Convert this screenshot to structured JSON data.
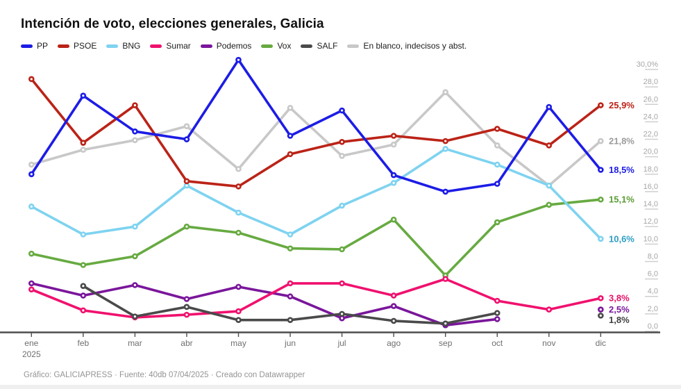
{
  "header": {
    "title": "Intención de voto, elecciones generales, Galicia"
  },
  "legend": {
    "items": [
      {
        "label": "PP",
        "color": "#1c1ce6"
      },
      {
        "label": "PSOE",
        "color": "#bb2317"
      },
      {
        "label": "BNG",
        "color": "#7ed3f0"
      },
      {
        "label": "Sumar",
        "color": "#f0116e"
      },
      {
        "label": "Podemos",
        "color": "#7a169b"
      },
      {
        "label": "Vox",
        "color": "#67aa41"
      },
      {
        "label": "SALF",
        "color": "#4a4a4a"
      },
      {
        "label": "En blanco, indecisos y abst.",
        "color": "#c8c8c8"
      }
    ]
  },
  "chart_data": {
    "type": "line",
    "title": "Intención de voto, elecciones generales, Galicia",
    "xlabel": "",
    "ylabel": "",
    "ylim": [
      0,
      31.5
    ],
    "grid": "off",
    "legend_position": "top",
    "x_categories": [
      "ene",
      "feb",
      "mar",
      "abr",
      "may",
      "jun",
      "jul",
      "ago",
      "sep",
      "oct",
      "nov",
      "dic"
    ],
    "x_axis_year": "2025",
    "y_ticks": [
      {
        "v": 0,
        "label": "0,0"
      },
      {
        "v": 2,
        "label": "2,0"
      },
      {
        "v": 4,
        "label": "4,0"
      },
      {
        "v": 6,
        "label": "6,0"
      },
      {
        "v": 8,
        "label": "8,0"
      },
      {
        "v": 10,
        "label": "10,0"
      },
      {
        "v": 12,
        "label": "12,0"
      },
      {
        "v": 14,
        "label": "14,0"
      },
      {
        "v": 16,
        "label": "16,0"
      },
      {
        "v": 18,
        "label": "18,0"
      },
      {
        "v": 20,
        "label": "20,0"
      },
      {
        "v": 22,
        "label": "22,0"
      },
      {
        "v": 24,
        "label": "24,0"
      },
      {
        "v": 26,
        "label": "26,0"
      },
      {
        "v": 28,
        "label": "28,0"
      },
      {
        "v": 30,
        "label": "30,0%"
      }
    ],
    "series": [
      {
        "name": "PP",
        "color": "#1c1ce6",
        "label_color": "#1c1ce6",
        "values": [
          18.0,
          27.0,
          22.9,
          22.0,
          31.1,
          22.4,
          25.3,
          17.9,
          16.0,
          16.9,
          25.7,
          18.5
        ],
        "end_label": "18,5%",
        "end_label_dy": 0
      },
      {
        "name": "PSOE",
        "color": "#bb2317",
        "label_color": "#bb2317",
        "values": [
          28.9,
          21.6,
          25.9,
          17.2,
          16.6,
          20.3,
          21.7,
          22.4,
          21.8,
          23.2,
          21.3,
          25.9
        ],
        "end_label": "25,9%",
        "end_label_dy": 0
      },
      {
        "name": "BNG",
        "color": "#7ed3f0",
        "label_color": "#2d9dc4",
        "values": [
          14.3,
          11.1,
          12.0,
          16.7,
          13.6,
          11.1,
          14.4,
          17.0,
          20.9,
          19.1,
          16.7,
          10.6
        ],
        "end_label": "10,6%",
        "end_label_dy": 0
      },
      {
        "name": "Sumar",
        "color": "#f0116e",
        "label_color": "#e60f66",
        "values": [
          4.8,
          2.4,
          1.6,
          1.9,
          2.3,
          5.5,
          5.5,
          4.1,
          6.0,
          3.5,
          2.5,
          3.8
        ],
        "end_label": "3,8%",
        "end_label_dy": 0
      },
      {
        "name": "Podemos",
        "color": "#7a169b",
        "label_color": "#7a169b",
        "values": [
          5.5,
          4.1,
          5.3,
          3.7,
          5.1,
          4.0,
          1.5,
          2.9,
          0.7,
          1.4,
          null,
          2.5
        ],
        "end_label": "2,5%",
        "end_label_dy": 0
      },
      {
        "name": "Vox",
        "color": "#67aa41",
        "label_color": "#5b9c36",
        "values": [
          8.9,
          7.6,
          8.6,
          12.0,
          11.3,
          9.5,
          9.4,
          12.8,
          6.4,
          12.5,
          14.5,
          15.1
        ],
        "end_label": "15,1%",
        "end_label_dy": 0
      },
      {
        "name": "SALF",
        "color": "#4a4a4a",
        "label_color": "#3f3f3f",
        "values": [
          null,
          5.2,
          1.7,
          2.8,
          1.3,
          1.3,
          2.0,
          1.2,
          0.9,
          2.1,
          null,
          1.8
        ],
        "end_label": "1,8%",
        "end_label_dy": 6
      },
      {
        "name": "En blanco, indecisos y abst.",
        "color": "#c8c8c8",
        "label_color": "#9b9b9b",
        "values": [
          19.1,
          20.8,
          21.9,
          23.5,
          18.6,
          25.6,
          20.1,
          21.4,
          27.4,
          21.3,
          16.7,
          21.8
        ],
        "end_label": "21,8%",
        "end_label_dy": 0
      }
    ],
    "draw_order": [
      "En blanco, indecisos y abst.",
      "Vox",
      "BNG",
      "Podemos",
      "Sumar",
      "SALF",
      "PSOE",
      "PP"
    ]
  },
  "footer": {
    "text": "Gráfico: GALICIAPRESS · Fuente: 40db 07/04/2025 · Creado con Datawrapper"
  }
}
